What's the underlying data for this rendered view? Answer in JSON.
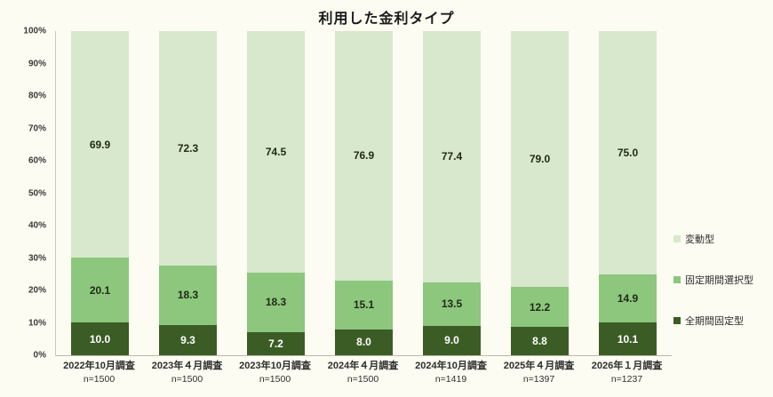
{
  "chart_data": {
    "type": "stacked-bar",
    "title": "利用した金利タイプ",
    "categories": [
      "2022年10月調査",
      "2023年４月調査",
      "2023年10月調査",
      "2024年４月調査",
      "2024年10月調査",
      "2025年４月調査",
      "2026年１月調査"
    ],
    "sample_sizes": [
      "n=1500",
      "n=1500",
      "n=1500",
      "n=1500",
      "n=1419",
      "n=1397",
      "n=1237"
    ],
    "series": [
      {
        "name": "全期間固定型",
        "color": "#3c5c26",
        "text_color": "#ffffff",
        "values": [
          10.0,
          9.3,
          7.2,
          8.0,
          9.0,
          8.8,
          10.1
        ]
      },
      {
        "name": "固定期間選択型",
        "color": "#8cc77d",
        "text_color": "#1f2a14",
        "values": [
          20.1,
          18.3,
          18.3,
          15.1,
          13.5,
          12.2,
          14.9
        ]
      },
      {
        "name": "変動型",
        "color": "#d8e8cc",
        "text_color": "#1f2a14",
        "values": [
          69.9,
          72.3,
          74.5,
          76.9,
          77.4,
          79.0,
          75.0
        ]
      }
    ],
    "y_ticks": [
      "0%",
      "10%",
      "20%",
      "30%",
      "40%",
      "50%",
      "60%",
      "70%",
      "80%",
      "90%",
      "100%"
    ],
    "ylim": [
      0,
      100
    ],
    "grid": false,
    "legend": [
      "変動型",
      "固定期間選択型",
      "全期間固定型"
    ],
    "legend_position": "right"
  }
}
